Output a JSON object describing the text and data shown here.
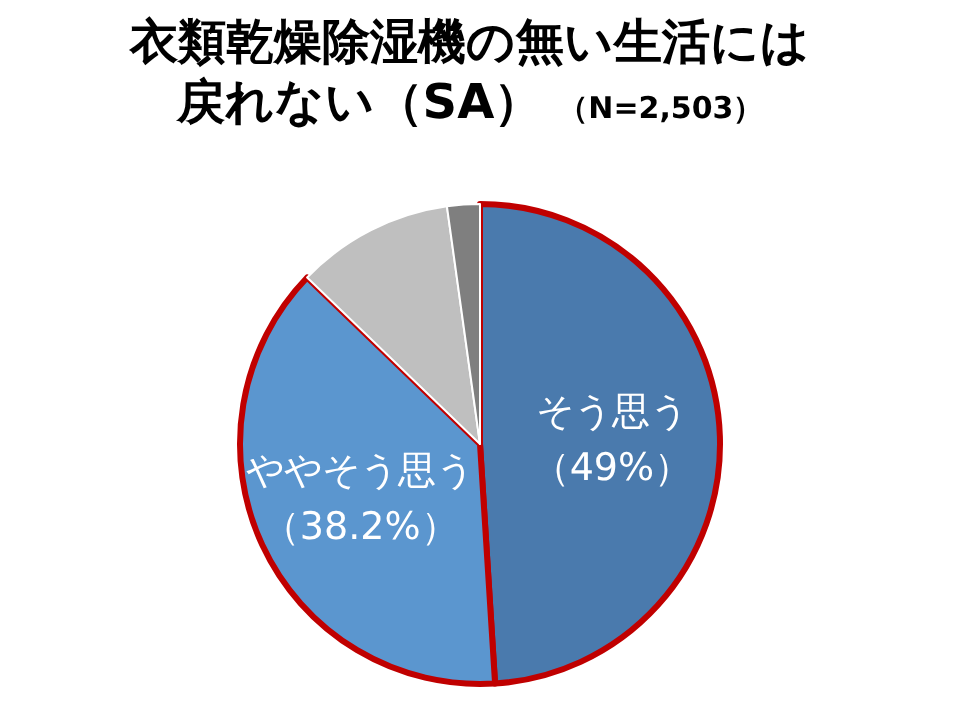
{
  "chart_data": {
    "type": "pie",
    "title": "衣類乾燥除湿機の無い生活には戻れない（SA）",
    "subtitle": "（N=2,503）",
    "categories": [
      "そう思う",
      "ややそう思う",
      null,
      null
    ],
    "values": [
      49,
      38.2,
      10.6,
      2.2
    ],
    "colors": [
      "#4a7aad",
      "#5b96cf",
      "#bfbfbf",
      "#7f7f7f"
    ],
    "value_labels": [
      "（49%）",
      "（38.2%）",
      null,
      null
    ]
  }
}
